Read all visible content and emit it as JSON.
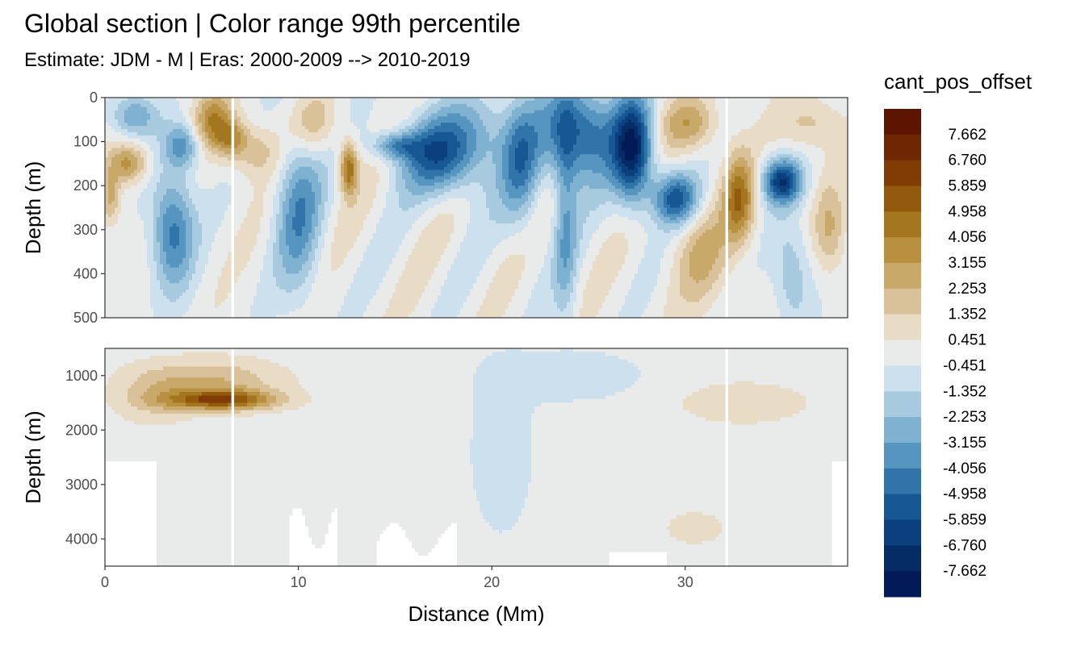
{
  "title": "Global section | Color range 99th percentile",
  "subtitle": "Estimate: JDM - M | Eras: 2000-2009 --> 2010-2019",
  "chart_data": {
    "type": "heatmap",
    "title": "Global section | Color range 99th percentile",
    "subtitle": "Estimate: JDM - M | Eras: 2000-2009 --> 2010-2019",
    "xlabel": "Distance (Mm)",
    "xlim": [
      0,
      38.4
    ],
    "x_ticks": [
      "0",
      "10",
      "20",
      "30"
    ],
    "panels": [
      {
        "name": "upper",
        "ylabel": "Depth (m)",
        "ylim": [
          0,
          500
        ],
        "y_reversed": true,
        "y_ticks": [
          "0",
          "100",
          "200",
          "300",
          "400",
          "500"
        ]
      },
      {
        "name": "lower",
        "ylabel": "Depth (m)",
        "ylim": [
          500,
          4500
        ],
        "y_reversed": true,
        "y_ticks": [
          "1000",
          "2000",
          "3000",
          "4000"
        ]
      }
    ],
    "legend": {
      "title": "cant_pos_offset",
      "placement": "right",
      "labels": [
        "7.662",
        "6.760",
        "5.859",
        "4.958",
        "4.056",
        "3.155",
        "2.253",
        "1.352",
        "0.451",
        "-0.451",
        "-1.352",
        "-2.253",
        "-3.155",
        "-4.056",
        "-4.958",
        "-5.859",
        "-6.760",
        "-7.662"
      ],
      "colors": [
        "#5b1500",
        "#6e2702",
        "#813c05",
        "#935a0d",
        "#a57620",
        "#b8903f",
        "#c9a96a",
        "#d9c29a",
        "#e8dcc6",
        "#e9ebea",
        "#cde0ed",
        "#a7cade",
        "#7fb1d1",
        "#5595c0",
        "#3174a9",
        "#155894",
        "#0b3f7d",
        "#062c66",
        "#031a59"
      ]
    },
    "gaps_x": [
      6.6,
      32.1
    ]
  }
}
